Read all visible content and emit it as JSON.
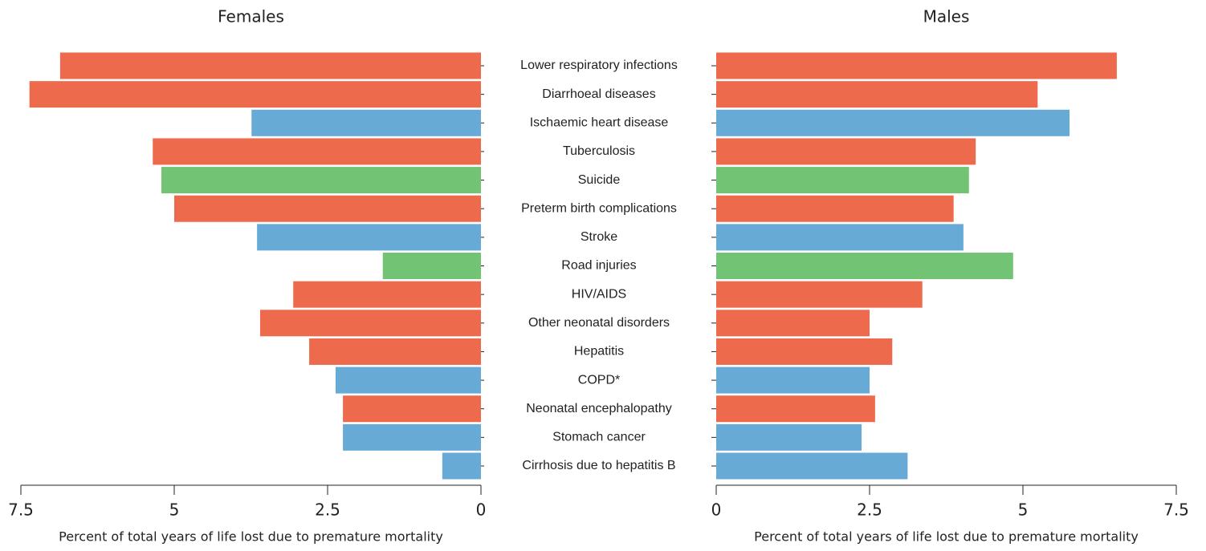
{
  "chart_data": {
    "type": "bar",
    "orientation": "horizontal-mirrored",
    "categories": [
      "Lower respiratory infections",
      "Diarrhoeal diseases",
      "Ischaemic heart disease",
      "Tuberculosis",
      "Suicide",
      "Preterm birth complications",
      "Stroke",
      "Road injuries",
      "HIV/AIDS",
      "Other neonatal disorders",
      "Hepatitis",
      "COPD*",
      "Neonatal encephalopathy",
      "Stomach cancer",
      "Cirrhosis due to hepatitis B"
    ],
    "colors": [
      "#ee6a4d",
      "#ee6a4d",
      "#67aad6",
      "#ee6a4d",
      "#72c474",
      "#ee6a4d",
      "#67aad6",
      "#72c474",
      "#ee6a4d",
      "#ee6a4d",
      "#ee6a4d",
      "#67aad6",
      "#ee6a4d",
      "#67aad6",
      "#67aad6"
    ],
    "series": [
      {
        "name": "Females",
        "values": [
          6.86,
          7.36,
          3.74,
          5.35,
          5.21,
          5.0,
          3.65,
          1.6,
          3.06,
          3.6,
          2.8,
          2.37,
          2.25,
          2.25,
          0.63
        ]
      },
      {
        "name": "Males",
        "values": [
          6.53,
          5.24,
          5.76,
          4.23,
          4.12,
          3.87,
          4.03,
          4.84,
          3.36,
          2.5,
          2.87,
          2.5,
          2.59,
          2.37,
          3.12
        ]
      }
    ],
    "xlabel": "Percent of total years of life lost due to premature mortality",
    "xlim": [
      0,
      7.5
    ],
    "xticks": [
      0,
      2.5,
      5,
      7.5
    ]
  }
}
